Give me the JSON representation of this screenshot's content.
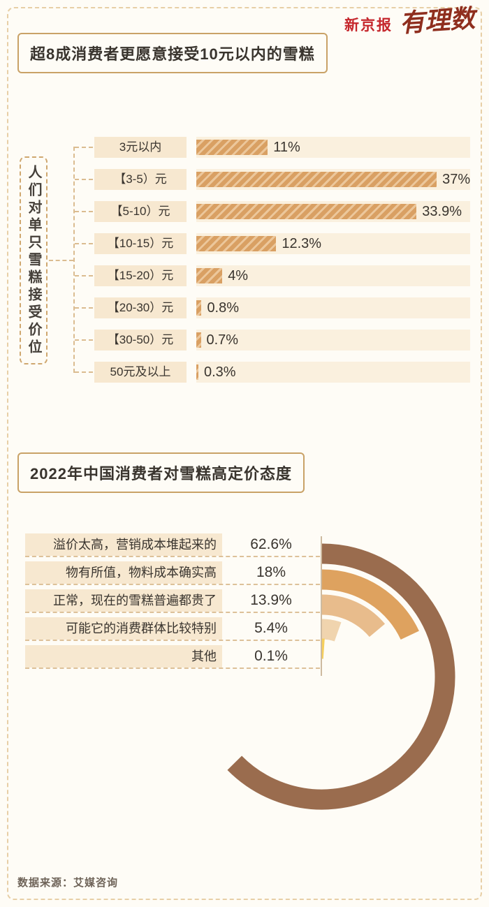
{
  "meta": {
    "brand_left": "新京报",
    "brand_right": "有理数",
    "source": "数据来源：艾媒咨询"
  },
  "section1": {
    "title": "超8成消费者更愿意接受10元以内的雪糕",
    "axis_label": "人们对单只雪糕接受价位"
  },
  "section2": {
    "title": "2022年中国消费者对雪糕高定价态度"
  },
  "chart_data": [
    {
      "type": "bar",
      "orientation": "horizontal",
      "title": "人们对单只雪糕接受价位",
      "categories": [
        "3元以内",
        "【3-5）元",
        "【5-10）元",
        "【10-15）元",
        "【15-20）元",
        "【20-30）元",
        "【30-50）元",
        "50元及以上"
      ],
      "values": [
        11,
        37,
        33.9,
        12.3,
        4,
        0.8,
        0.7,
        0.3
      ],
      "value_labels": [
        "11%",
        "37%",
        "33.9%",
        "12.3%",
        "4%",
        "0.8%",
        "0.7%",
        "0.3%"
      ],
      "bar_color": "#d9a063",
      "xlim": [
        0,
        40
      ],
      "grid": false
    },
    {
      "type": "radial-bar",
      "title": "2022年中国消费者对雪糕高定价态度",
      "categories": [
        "溢价太高，营销成本堆起来的",
        "物有所值，物料成本确实高",
        "正常，现在的雪糕普遍都贵了",
        "可能它的消费群体比较特别",
        "其他"
      ],
      "values": [
        62.6,
        18,
        13.9,
        5.4,
        0.1
      ],
      "value_labels": [
        "62.6%",
        "18%",
        "13.9%",
        "5.4%",
        "0.1%"
      ],
      "colors": [
        "#9a6c4e",
        "#dea25f",
        "#e8bc8c",
        "#f0d4ae",
        "#f6cf5c"
      ],
      "start_angle_deg": 0,
      "direction": "clockwise",
      "full_circle_percent": 100
    }
  ]
}
